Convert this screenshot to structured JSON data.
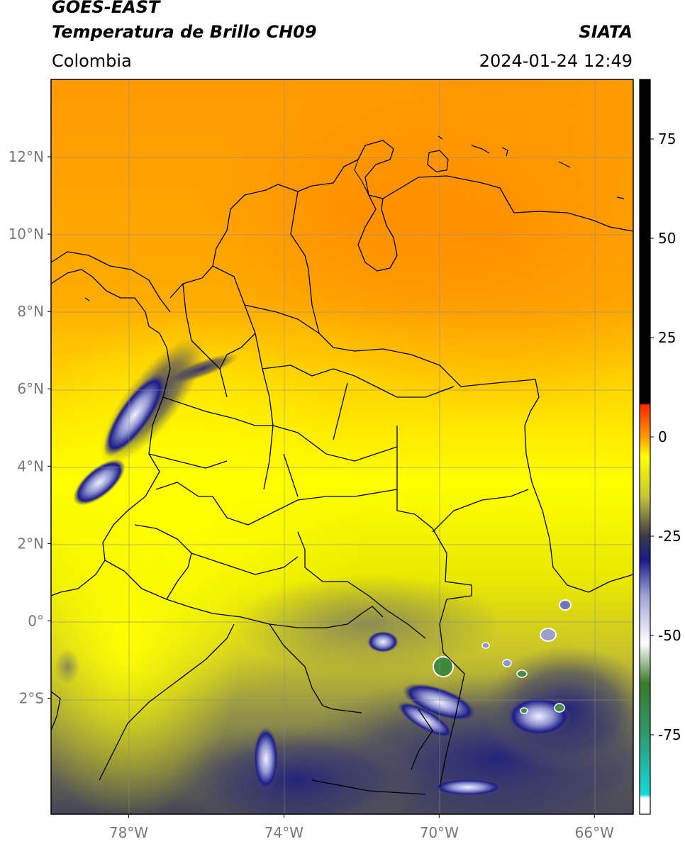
{
  "header": {
    "satellite": "GOES-EAST",
    "product": "Temperatura de Brillo CH09",
    "source": "SIATA",
    "region": "Colombia",
    "datetime": "2024-01-24 12:49"
  },
  "map": {
    "lon_range": [
      -80,
      -65
    ],
    "lat_range": [
      -5,
      14
    ],
    "lat_ticks": [
      {
        "value": 12,
        "label": "12°N"
      },
      {
        "value": 10,
        "label": "10°N"
      },
      {
        "value": 8,
        "label": "8°N"
      },
      {
        "value": 6,
        "label": "6°N"
      },
      {
        "value": 4,
        "label": "4°N"
      },
      {
        "value": 2,
        "label": "2°N"
      },
      {
        "value": 0,
        "label": "0°"
      },
      {
        "value": -2,
        "label": "2°S"
      }
    ],
    "lon_ticks": [
      {
        "value": -78,
        "label": "78°W"
      },
      {
        "value": -74,
        "label": "74°W"
      },
      {
        "value": -70,
        "label": "70°W"
      },
      {
        "value": -66,
        "label": "66°W"
      }
    ]
  },
  "colorbar": {
    "range": [
      -95,
      90
    ],
    "ticks": [
      {
        "value": 75,
        "label": "75"
      },
      {
        "value": 50,
        "label": "50"
      },
      {
        "value": 25,
        "label": "25"
      },
      {
        "value": 0,
        "label": "0"
      },
      {
        "value": -25,
        "label": "-25"
      },
      {
        "value": -50,
        "label": "-50"
      },
      {
        "value": -75,
        "label": "-75"
      }
    ],
    "stops": [
      {
        "value": -95,
        "color": "#ffffff"
      },
      {
        "value": -91,
        "color": "#ffffff"
      },
      {
        "value": -90,
        "color": "#17d8d8"
      },
      {
        "value": -75,
        "color": "#2e9a6f"
      },
      {
        "value": -62,
        "color": "#3a7a2a"
      },
      {
        "value": -52,
        "color": "#ffffff"
      },
      {
        "value": -40,
        "color": "#9fa4d6"
      },
      {
        "value": -31,
        "color": "#1a1a8a"
      },
      {
        "value": -25,
        "color": "#3a3a48"
      },
      {
        "value": -15,
        "color": "#c9c43a"
      },
      {
        "value": -5,
        "color": "#ffff00"
      },
      {
        "value": 0,
        "color": "#ff9900"
      },
      {
        "value": 8,
        "color": "#ff2a00"
      },
      {
        "value": 8.5,
        "color": "#000000"
      },
      {
        "value": 90,
        "color": "#000000"
      }
    ]
  }
}
